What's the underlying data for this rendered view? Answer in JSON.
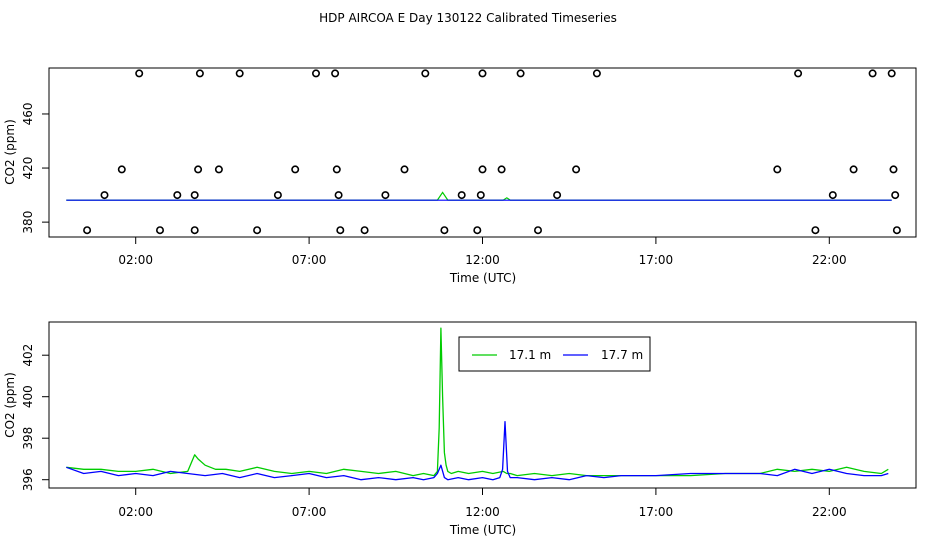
{
  "chart_data": {
    "type": "line",
    "title": "HDP AIRCOA E  Day 130122  Calibrated Timeseries",
    "panels": [
      {
        "name": "top",
        "type": "scatter+line",
        "xlabel": "Time (UTC)",
        "ylabel": "CO2 (ppm)",
        "x_ticks": [
          "02:00",
          "07:00",
          "12:00",
          "17:00",
          "22:00"
        ],
        "y_ticks": [
          "380",
          "420",
          "460"
        ],
        "xlim": [
          -0.5,
          24.5
        ],
        "ylim": [
          369,
          494
        ],
        "scatter_points": [
          [
            0.6,
            374
          ],
          [
            1.1,
            400
          ],
          [
            1.6,
            419
          ],
          [
            2.1,
            490
          ],
          [
            2.7,
            374
          ],
          [
            3.2,
            400
          ],
          [
            3.7,
            400
          ],
          [
            3.7,
            374
          ],
          [
            3.8,
            419
          ],
          [
            3.85,
            490
          ],
          [
            4.4,
            419
          ],
          [
            5.0,
            490
          ],
          [
            5.5,
            374
          ],
          [
            6.1,
            400
          ],
          [
            6.6,
            419
          ],
          [
            7.2,
            490
          ],
          [
            7.75,
            490
          ],
          [
            7.8,
            419
          ],
          [
            7.85,
            400
          ],
          [
            7.9,
            374
          ],
          [
            8.6,
            374
          ],
          [
            9.2,
            400
          ],
          [
            9.75,
            419
          ],
          [
            10.35,
            490
          ],
          [
            10.9,
            374
          ],
          [
            11.4,
            400
          ],
          [
            11.85,
            374
          ],
          [
            11.95,
            400
          ],
          [
            12.0,
            419
          ],
          [
            12.0,
            490
          ],
          [
            12.55,
            419
          ],
          [
            13.1,
            490
          ],
          [
            13.6,
            374
          ],
          [
            14.15,
            400
          ],
          [
            14.7,
            419
          ],
          [
            15.3,
            490
          ],
          [
            20.5,
            419
          ],
          [
            21.1,
            490
          ],
          [
            21.6,
            374
          ],
          [
            22.1,
            400
          ],
          [
            22.7,
            419
          ],
          [
            23.25,
            490
          ],
          [
            23.8,
            490
          ],
          [
            23.85,
            419
          ],
          [
            23.9,
            400
          ],
          [
            23.95,
            374
          ]
        ],
        "series": [
          {
            "color": "#00cc00",
            "values_x": [
              0,
              10.7,
              10.85,
              11.0,
              12.6,
              12.7,
              12.8,
              23.8
            ],
            "values_y": [
              396.3,
              396.3,
              402,
              396.3,
              396.3,
              398,
              396.3,
              396.3
            ]
          },
          {
            "color": "#0000ff",
            "values_x": [
              0,
              23.8
            ],
            "values_y": [
              396.2,
              396.2
            ]
          }
        ]
      },
      {
        "name": "bottom",
        "type": "line",
        "xlabel": "Time (UTC)",
        "ylabel": "CO2 (ppm)",
        "x_ticks": [
          "02:00",
          "07:00",
          "12:00",
          "17:00",
          "22:00"
        ],
        "y_ticks": [
          "396",
          "398",
          "400",
          "402"
        ],
        "xlim": [
          -0.5,
          24.5
        ],
        "ylim": [
          395.6,
          403.6
        ],
        "legend": {
          "placement": "top-center",
          "entries": [
            {
              "label": "17.1 m",
              "color": "#00cc00"
            },
            {
              "label": "17.7 m",
              "color": "#0000ff"
            }
          ]
        },
        "series": [
          {
            "label": "17.1 m",
            "color": "#00cc00",
            "x": [
              0.0,
              0.5,
              1.0,
              1.5,
              2.0,
              2.5,
              3.0,
              3.5,
              3.7,
              3.8,
              4.0,
              4.3,
              4.6,
              5.0,
              5.5,
              6.0,
              6.5,
              7.0,
              7.5,
              8.0,
              8.5,
              9.0,
              9.5,
              10.0,
              10.3,
              10.6,
              10.7,
              10.75,
              10.8,
              10.85,
              10.9,
              10.95,
              11.0,
              11.1,
              11.3,
              11.6,
              12.0,
              12.3,
              12.6,
              12.7,
              12.8,
              13.0,
              13.5,
              14.0,
              14.5,
              15.0,
              15.5,
              16.0,
              17.0,
              18.0,
              19.0,
              19.5,
              20.0,
              20.5,
              21.0,
              21.5,
              22.0,
              22.5,
              23.0,
              23.5,
              23.7
            ],
            "y": [
              396.6,
              396.5,
              396.5,
              396.4,
              396.4,
              396.5,
              396.3,
              396.4,
              397.2,
              397.0,
              396.7,
              396.5,
              396.5,
              396.4,
              396.6,
              396.4,
              396.3,
              396.4,
              396.3,
              396.5,
              396.4,
              396.3,
              396.4,
              396.2,
              396.3,
              396.2,
              396.4,
              398.5,
              403.3,
              400.0,
              397.3,
              396.7,
              396.4,
              396.3,
              396.4,
              396.3,
              396.4,
              396.3,
              396.4,
              396.3,
              396.3,
              396.2,
              396.3,
              396.2,
              396.3,
              396.2,
              396.2,
              396.2,
              396.2,
              396.2,
              396.3,
              396.3,
              396.3,
              396.5,
              396.4,
              396.5,
              396.4,
              396.6,
              396.4,
              396.3,
              396.5
            ]
          },
          {
            "label": "17.7 m",
            "color": "#0000ff",
            "x": [
              0.0,
              0.5,
              1.0,
              1.5,
              2.0,
              2.5,
              3.0,
              3.5,
              4.0,
              4.5,
              5.0,
              5.5,
              6.0,
              6.5,
              7.0,
              7.5,
              8.0,
              8.5,
              9.0,
              9.5,
              10.0,
              10.3,
              10.6,
              10.7,
              10.8,
              10.9,
              11.0,
              11.3,
              11.6,
              12.0,
              12.3,
              12.5,
              12.58,
              12.65,
              12.72,
              12.8,
              13.0,
              13.5,
              14.0,
              14.5,
              15.0,
              15.5,
              16.0,
              17.0,
              18.0,
              19.0,
              19.5,
              20.0,
              20.5,
              21.0,
              21.5,
              22.0,
              22.5,
              23.0,
              23.5,
              23.7
            ],
            "y": [
              396.6,
              396.3,
              396.4,
              396.2,
              396.3,
              396.2,
              396.4,
              396.3,
              396.2,
              396.3,
              396.1,
              396.3,
              396.1,
              396.2,
              396.3,
              396.1,
              396.2,
              396.0,
              396.1,
              396.0,
              396.1,
              396.0,
              396.1,
              396.3,
              396.7,
              396.1,
              396.0,
              396.1,
              396.0,
              396.1,
              396.0,
              396.1,
              396.5,
              398.8,
              396.4,
              396.1,
              396.1,
              396.0,
              396.1,
              396.0,
              396.2,
              396.1,
              396.2,
              396.2,
              396.3,
              396.3,
              396.3,
              396.3,
              396.2,
              396.5,
              396.3,
              396.5,
              396.3,
              396.2,
              396.2,
              396.3
            ]
          }
        ]
      }
    ]
  }
}
